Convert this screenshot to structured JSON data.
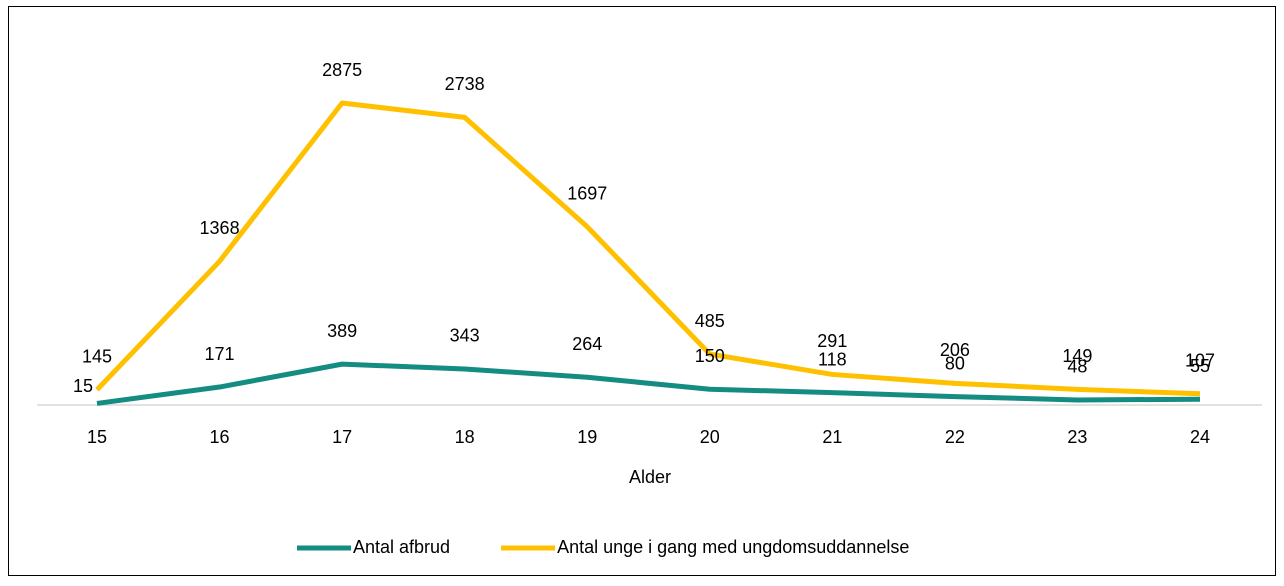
{
  "chart_data": {
    "type": "line",
    "x_label": "Alder",
    "categories": [
      "15",
      "16",
      "17",
      "18",
      "19",
      "20",
      "21",
      "22",
      "23",
      "24"
    ],
    "series": [
      {
        "name": "Antal afbrud",
        "color": "#148c82",
        "values": [
          15,
          171,
          389,
          343,
          264,
          150,
          118,
          80,
          48,
          55
        ]
      },
      {
        "name": "Antal unge i gang med ungdomsuddannelse",
        "color": "#ffc000",
        "values": [
          145,
          1368,
          2875,
          2738,
          1697,
          485,
          291,
          206,
          149,
          107
        ]
      }
    ],
    "legend": "bottom"
  }
}
